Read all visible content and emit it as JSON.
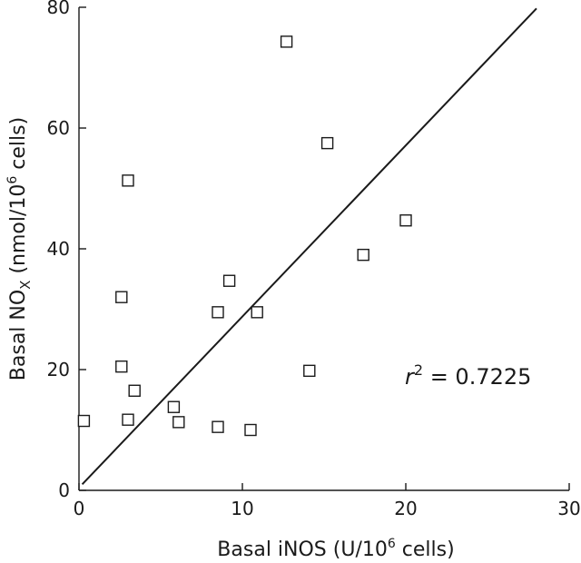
{
  "chart_data": {
    "type": "scatter",
    "title": "",
    "xlabel": {
      "pre": "Basal iNOS (U/10",
      "sup": "6",
      "post": " cells)"
    },
    "ylabel": {
      "pre": "Basal NO",
      "sub": "X",
      "mid": " (nmol/10",
      "sup": "6",
      "post": " cells)"
    },
    "xlim": [
      0,
      30
    ],
    "ylim": [
      0,
      80
    ],
    "xticks": [
      0,
      10,
      20,
      30
    ],
    "yticks": [
      0,
      20,
      40,
      60,
      80
    ],
    "grid": false,
    "marker": "open-square",
    "points": [
      {
        "x": 0.3,
        "y": 11.5
      },
      {
        "x": 2.6,
        "y": 32.0
      },
      {
        "x": 2.6,
        "y": 20.5
      },
      {
        "x": 3.0,
        "y": 51.3
      },
      {
        "x": 3.0,
        "y": 11.7
      },
      {
        "x": 3.4,
        "y": 16.5
      },
      {
        "x": 5.8,
        "y": 13.8
      },
      {
        "x": 6.1,
        "y": 11.3
      },
      {
        "x": 8.5,
        "y": 29.5
      },
      {
        "x": 8.5,
        "y": 10.5
      },
      {
        "x": 9.2,
        "y": 34.7
      },
      {
        "x": 10.5,
        "y": 10.0
      },
      {
        "x": 10.9,
        "y": 29.5
      },
      {
        "x": 12.7,
        "y": 74.3
      },
      {
        "x": 14.1,
        "y": 19.8
      },
      {
        "x": 15.2,
        "y": 57.5
      },
      {
        "x": 17.4,
        "y": 39.0
      },
      {
        "x": 20.0,
        "y": 44.7
      }
    ],
    "fit_line": {
      "x": [
        0.2,
        28.0
      ],
      "y": [
        1.0,
        79.8
      ]
    },
    "annotation": {
      "base": "r",
      "sup": "2",
      "rest": " = 0.7225"
    }
  }
}
